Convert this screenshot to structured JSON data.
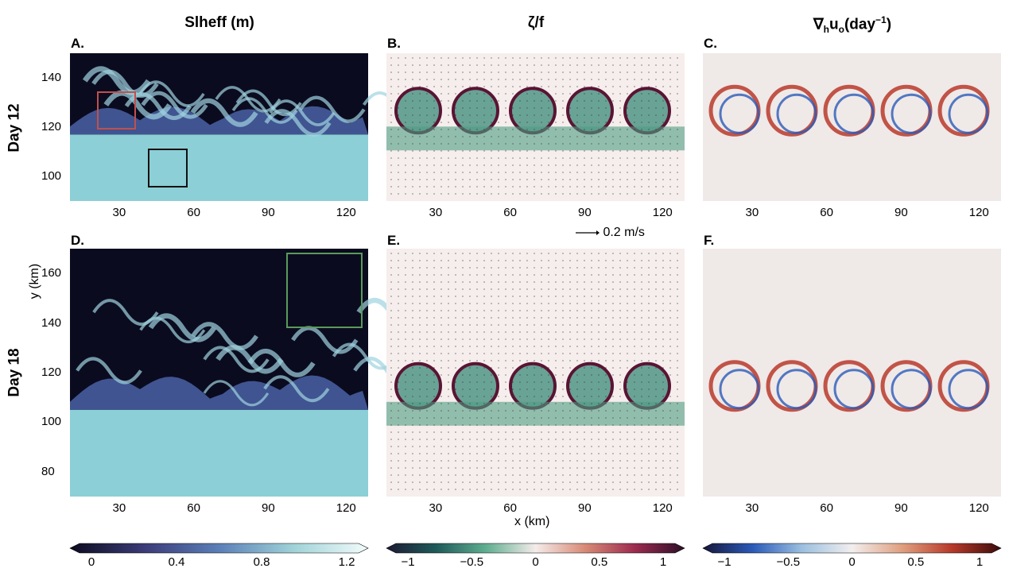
{
  "chart_data": [
    {
      "type": "heatmap",
      "title": "Slheff (m)",
      "panels": [
        {
          "letter": "A.",
          "day_label": "Day 12"
        },
        {
          "letter": "D.",
          "day_label": "Day 18"
        }
      ],
      "xlabel": "x (km)",
      "ylabel": "y (km)",
      "x_ticks": [
        30,
        60,
        90,
        120
      ],
      "xlim": [
        10,
        130
      ],
      "row1_y_ticks": [
        100,
        120,
        140
      ],
      "row1_ylim": [
        90,
        150
      ],
      "row2_y_ticks": [
        80,
        100,
        120,
        140,
        160
      ],
      "row2_ylim": [
        70,
        170
      ],
      "colorbar": {
        "ticks": [
          "0",
          "0.4",
          "0.8",
          "1.2"
        ],
        "range": [
          0,
          1.2
        ],
        "colors": [
          "#0b0b1f",
          "#3b3b78",
          "#5a7fb8",
          "#9fd3d8",
          "#f3fbfb"
        ]
      }
    },
    {
      "type": "heatmap",
      "title": "ζ/f",
      "panels": [
        {
          "letter": "B."
        },
        {
          "letter": "E."
        }
      ],
      "quiver_scale": "0.2 m/s",
      "colorbar": {
        "ticks": [
          "−1",
          "−0.5",
          "0",
          "0.5",
          "1"
        ],
        "range": [
          -1,
          1
        ],
        "colors": [
          "#1c1a33",
          "#1f5a5a",
          "#5fae90",
          "#f4ecea",
          "#d88a76",
          "#9c2b4f",
          "#2b0f28"
        ]
      }
    },
    {
      "type": "heatmap",
      "title": "∇",
      "title_sub": "h",
      "title_main2": "u",
      "title_sub2": "o",
      "title_unit": "(day",
      "title_sup": "−1",
      "title_end": ")",
      "panels": [
        {
          "letter": "C."
        },
        {
          "letter": "F."
        }
      ],
      "colorbar": {
        "ticks": [
          "−1",
          "−0.5",
          "0",
          "0.5",
          "1"
        ],
        "range": [
          -1,
          1
        ],
        "colors": [
          "#16163a",
          "#2a5ab8",
          "#9cc0e0",
          "#f2eeee",
          "#e0a080",
          "#b83a2a",
          "#3a0b0b"
        ]
      }
    }
  ],
  "colors": {
    "box_red": "#c0504d",
    "box_black": "#111111",
    "box_green": "#5a9a5a"
  }
}
